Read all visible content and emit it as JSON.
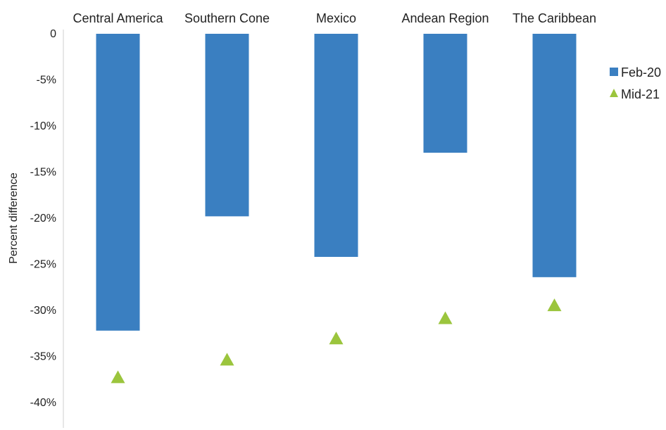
{
  "chart_data": {
    "type": "bar",
    "categories": [
      "Central America",
      "Southern Cone",
      "Mexico",
      "Andean Region",
      "The Caribbean"
    ],
    "series": [
      {
        "name": "Feb-20",
        "type": "bar",
        "values": [
          -32.2,
          -19.8,
          -24.2,
          -12.9,
          -26.4
        ],
        "color": "#3a7fc1"
      },
      {
        "name": "Mid-21",
        "type": "marker",
        "marker": "triangle",
        "values": [
          -37.2,
          -35.3,
          -33.0,
          -30.8,
          -29.4
        ],
        "color": "#9bc53d"
      }
    ],
    "ylabel": "Percent difference",
    "xlabel": "",
    "ylim": [
      -42,
      0
    ],
    "yticks": [
      0,
      -5,
      -10,
      -15,
      -20,
      -25,
      -30,
      -35,
      -40
    ],
    "ytick_labels": [
      "0",
      "-5%",
      "-10%",
      "-15%",
      "-20%",
      "-25%",
      "-30%",
      "-35%",
      "-40%"
    ],
    "x_axis_position": "top",
    "grid": false,
    "legend_position": "right"
  }
}
